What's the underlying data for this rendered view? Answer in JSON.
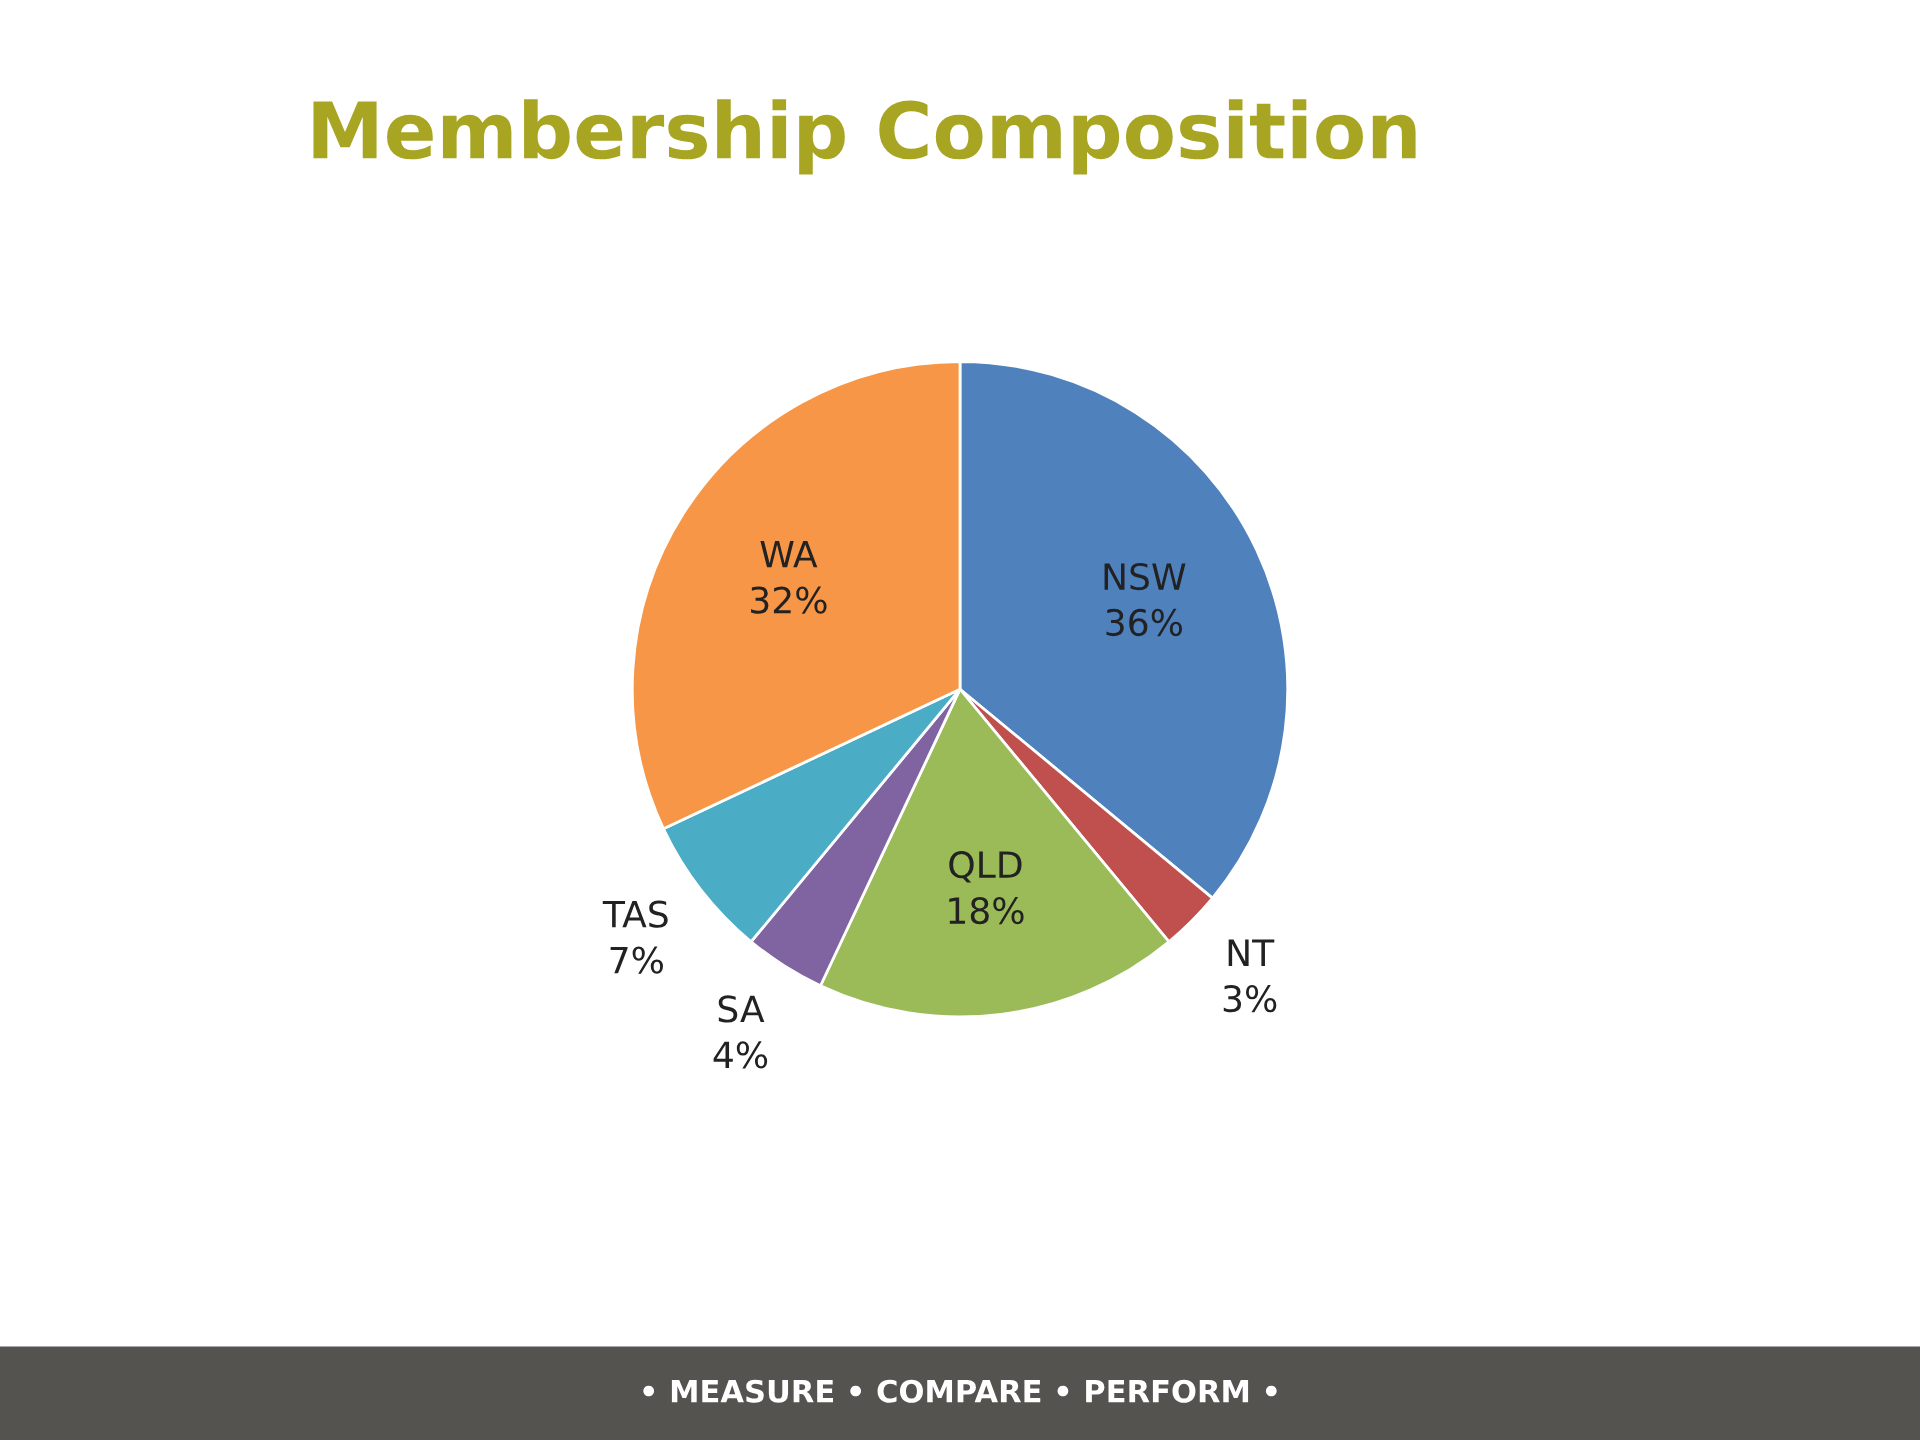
{
  "chart_data": {
    "type": "pie",
    "title": "Membership Composition",
    "categories": [
      "NSW",
      "NT",
      "QLD",
      "SA",
      "TAS",
      "WA"
    ],
    "values": [
      36,
      3,
      18,
      4,
      7,
      32
    ],
    "colors": [
      "#4f81bd",
      "#c0504d",
      "#9bbb59",
      "#8064a2",
      "#4bacc6",
      "#f79646"
    ],
    "value_labels": [
      "36%",
      "3%",
      "18%",
      "4%",
      "7%",
      "32%"
    ],
    "annotations": [
      "• MEASURE • COMPARE • PERFORM •"
    ]
  }
}
